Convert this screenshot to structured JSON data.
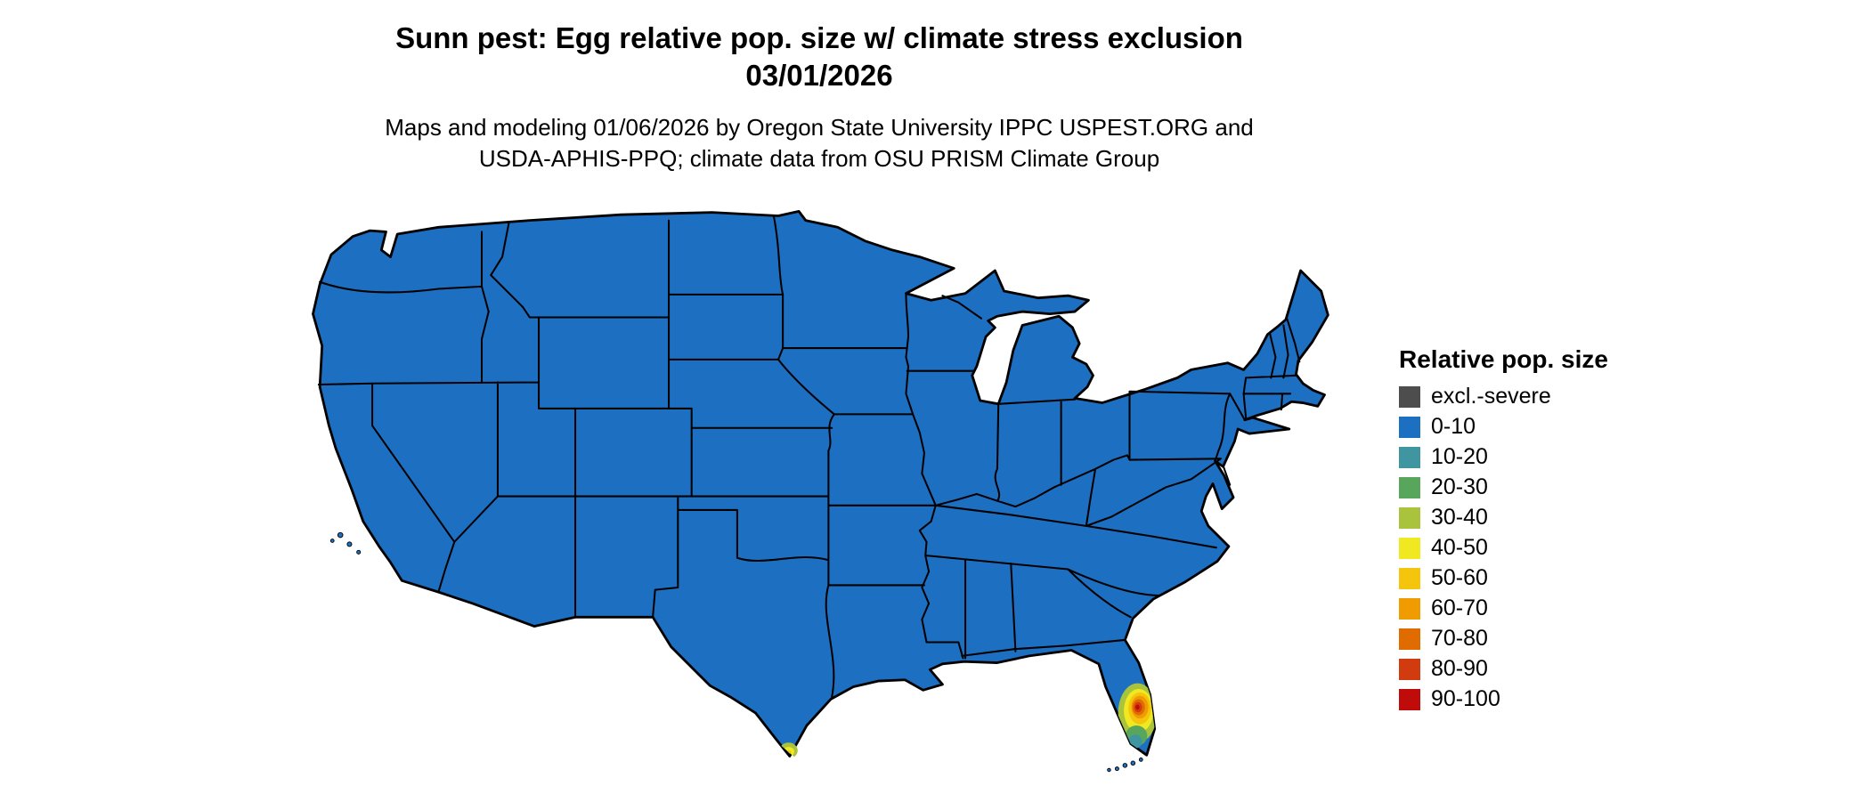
{
  "header": {
    "title_line1": "Sunn pest: Egg relative pop. size w/ climate stress exclusion",
    "title_line2": "03/01/2026",
    "subtitle_line1": "Maps and modeling 01/06/2026 by Oregon State University IPPC USPEST.ORG and",
    "subtitle_line2": "USDA-APHIS-PPQ; climate data from OSU PRISM Climate Group"
  },
  "legend": {
    "title": "Relative pop. size",
    "items": [
      {
        "label": "excl.-severe",
        "color": "#4d4d4d"
      },
      {
        "label": "0-10",
        "color": "#1d6fc2"
      },
      {
        "label": "10-20",
        "color": "#3f95a0"
      },
      {
        "label": "20-30",
        "color": "#58a55c"
      },
      {
        "label": "30-40",
        "color": "#a9c43c"
      },
      {
        "label": "40-50",
        "color": "#f0e921"
      },
      {
        "label": "50-60",
        "color": "#f4c50c"
      },
      {
        "label": "60-70",
        "color": "#f09b00"
      },
      {
        "label": "70-80",
        "color": "#e06c00"
      },
      {
        "label": "80-90",
        "color": "#d23b10"
      },
      {
        "label": "90-100",
        "color": "#c00b0b"
      }
    ]
  },
  "map": {
    "land_level": "0-10",
    "border_color": "#000000",
    "background_color": "#ffffff",
    "hotspots": [
      {
        "region": "south-florida",
        "levels": [
          "10-20",
          "20-30",
          "30-40",
          "40-50",
          "50-60",
          "60-70",
          "70-80",
          "80-90",
          "90-100"
        ]
      },
      {
        "region": "south-texas-rio-grande-valley",
        "levels": [
          "30-40",
          "40-50",
          "50-60"
        ]
      }
    ]
  }
}
